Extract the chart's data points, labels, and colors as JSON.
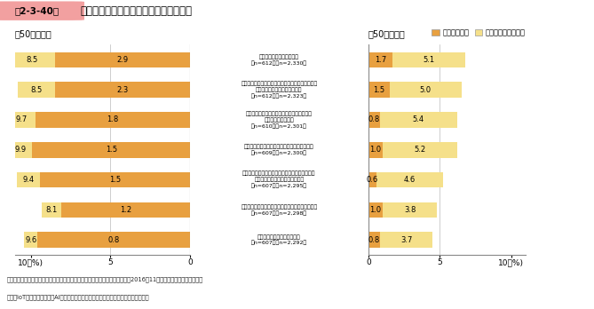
{
  "title": "経営者年代別に見た、新技術の活用状況",
  "fig_label": "第2-3-40図",
  "left_label": "【50歳未満】",
  "right_label": "【50歳以上】",
  "legend_active": "活用している",
  "legend_considering": "活用を検討している",
  "categories": [
    "顧客・取引先のニーズ把握\n（n=612）（n=2,330）",
    "製品・サービスの稼動状況、顧客・取引先ニーズを\n把握し新製品・サービスを開発\n（n=612）（n=2,323）",
    "従業員の稼動状態・動線を「見える化」し、\n業務プロセスを改善\n（n=610）（n=2,301）",
    "受注、生産、在庫状況等を統一的に把握・管理\n（n=609）（n=2,300）",
    "顧客・取引先ニーズを把握し、製品の少量多品種\n生産やきめ細かなサービスの提供\n（n=607）（n=2,295）",
    "バックヤード・アシスタント業務の自動化・省力化\n（n=607）（n=2,298）",
    "製品・サービスの需要の予測\n（n=607）（n=2,292）"
  ],
  "left_active": [
    8.5,
    8.5,
    9.7,
    9.9,
    9.4,
    8.1,
    9.6
  ],
  "left_considering": [
    2.9,
    2.3,
    1.8,
    1.5,
    1.5,
    1.2,
    0.8
  ],
  "right_active": [
    1.7,
    1.5,
    0.8,
    1.0,
    0.6,
    1.0,
    0.8
  ],
  "right_considering": [
    5.1,
    5.0,
    5.4,
    5.2,
    4.6,
    3.8,
    3.7
  ],
  "color_active": "#E8A040",
  "color_considering": "#F5E08A",
  "xlim_left": 11,
  "xlim_right": 11,
  "footnote1": "資料：中小企業庁委託「中小企業の成長に向けた事業戦略等に関する調査」（2016年11月、（株）野村総合研究所）",
  "footnote2": "（注）IoT、ビッグデータ、AI、ロボット等の新技術の活用状況について尋ねたもの。"
}
